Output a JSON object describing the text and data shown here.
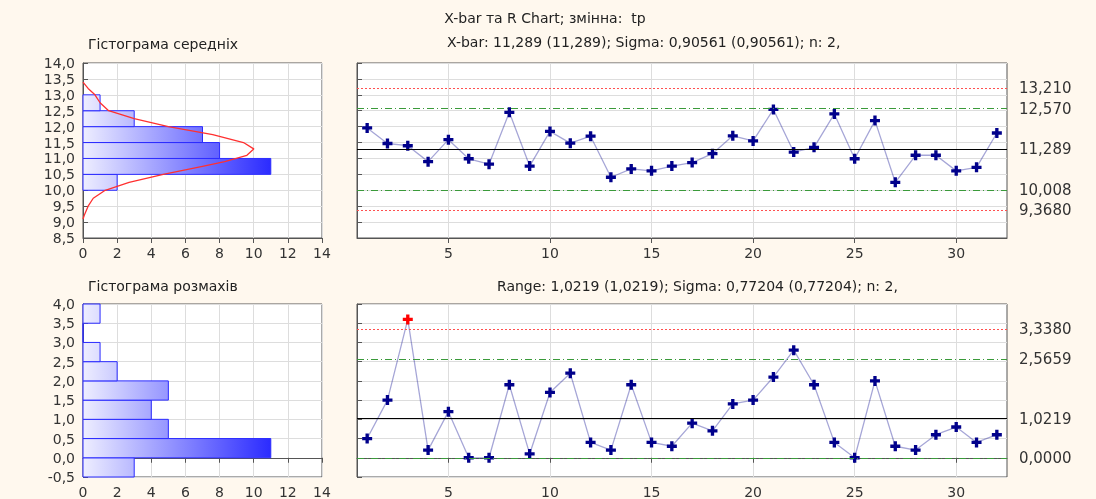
{
  "chart_data": [
    {
      "type": "histogram",
      "title": "Гістограма середніх",
      "orientation": "horizontal",
      "bins": [
        10,
        10.5,
        11,
        11.5,
        12,
        12.5,
        13
      ],
      "values": [
        2,
        11,
        8,
        7,
        3,
        1
      ],
      "color": "#2b2bff",
      "series": [
        {
          "type": "line",
          "color": "#ff3030",
          "x": [
            13.4,
            13.2,
            13.0,
            12.75,
            12.5,
            12.25,
            12.0,
            11.75,
            11.5,
            11.3,
            11.1,
            10.9,
            10.75,
            10.5,
            10.25,
            10.0,
            9.75,
            9.5,
            9.25,
            9.1
          ],
          "values": [
            0,
            0.3,
            0.7,
            1.0,
            1.5,
            3.0,
            5.0,
            7.6,
            9.4,
            10.0,
            9.6,
            8.3,
            7.0,
            4.7,
            2.7,
            1.3,
            0.6,
            0.3,
            0.1,
            0
          ]
        }
      ],
      "xlim": [
        0,
        14
      ],
      "xticks": [
        0,
        2,
        4,
        6,
        8,
        10,
        12,
        14
      ],
      "ylim": [
        8.5,
        14
      ],
      "yticks": [
        {
          "value": 8.5,
          "label": "8,5"
        },
        {
          "value": 9,
          "label": "9,0"
        },
        {
          "value": 9.5,
          "label": "9,5"
        },
        {
          "value": 10,
          "label": "10,0"
        },
        {
          "value": 10.5,
          "label": "10,5"
        },
        {
          "value": 11,
          "label": "11,0"
        },
        {
          "value": 11.5,
          "label": "11,5"
        },
        {
          "value": 12,
          "label": "12,0"
        },
        {
          "value": 12.5,
          "label": "12,5"
        },
        {
          "value": 13,
          "label": "13,0"
        },
        {
          "value": 13.5,
          "label": "13,5"
        },
        {
          "value": 14,
          "label": "14,0"
        }
      ],
      "grid": true
    },
    {
      "type": "line",
      "title": "X-bar та R Chart; змінна:  tp",
      "subtitle": "X-bar: 11,289 (11,289); Sigma: 0,90561 (0,90561); n: 2,",
      "color": "#00008b",
      "marker": "cross",
      "x": [
        1,
        2,
        3,
        4,
        5,
        6,
        7,
        8,
        9,
        10,
        11,
        12,
        13,
        14,
        15,
        16,
        17,
        18,
        19,
        20,
        21,
        22,
        23,
        24,
        25,
        26,
        27,
        28,
        29,
        30,
        31,
        32
      ],
      "values": [
        11.96,
        11.47,
        11.4,
        10.9,
        11.59,
        10.99,
        10.82,
        12.45,
        10.76,
        11.85,
        11.48,
        11.7,
        10.41,
        10.67,
        10.61,
        10.76,
        10.87,
        11.15,
        11.71,
        11.55,
        12.54,
        11.2,
        11.35,
        12.4,
        10.99,
        12.19,
        10.25,
        11.1,
        11.1,
        10.61,
        10.72,
        11.8
      ],
      "xlim": [
        0.5,
        32.5
      ],
      "xticks": [
        5,
        10,
        15,
        20,
        25,
        30
      ],
      "ylim": [
        8.5,
        14
      ],
      "yticks": [
        8.5,
        9,
        9.5,
        10,
        10.5,
        11,
        11.5,
        12,
        12.5,
        13,
        13.5,
        14
      ],
      "tick_labels": "x",
      "grid": true,
      "ref_lines": [
        {
          "axis": "y",
          "value": 13.21,
          "label": "13,210",
          "color": "#ff5050",
          "line_style": "dotted"
        },
        {
          "axis": "y",
          "value": 12.57,
          "label": "12,570",
          "color": "#3a9a3a",
          "line_style": "dashed"
        },
        {
          "axis": "y",
          "value": 11.289,
          "label": "11,289",
          "color": "#000000",
          "line_style": "solid"
        },
        {
          "axis": "y",
          "value": 10.008,
          "label": "10,008",
          "color": "#3a9a3a",
          "line_style": "dashed"
        },
        {
          "axis": "y",
          "value": 9.368,
          "label": "9,3680",
          "color": "#ff5050",
          "line_style": "dotted"
        }
      ]
    },
    {
      "type": "histogram",
      "title": "Гістограма розмахів",
      "orientation": "horizontal",
      "bins": [
        -0.5,
        0,
        0.5,
        1,
        1.5,
        2,
        2.5,
        3,
        3.5,
        4
      ],
      "values": [
        3,
        11,
        5,
        4,
        5,
        2,
        1,
        0,
        1
      ],
      "color": "#2b2bff",
      "xlim": [
        0,
        14
      ],
      "xticks": [
        0,
        2,
        4,
        6,
        8,
        10,
        12,
        14
      ],
      "ylim": [
        -0.5,
        4
      ],
      "yticks": [
        {
          "value": -0.5,
          "label": "-0,5"
        },
        {
          "value": 0,
          "label": "0,0"
        },
        {
          "value": 0.5,
          "label": "0,5"
        },
        {
          "value": 1,
          "label": "1,0"
        },
        {
          "value": 1.5,
          "label": "1,5"
        },
        {
          "value": 2,
          "label": "2,0"
        },
        {
          "value": 2.5,
          "label": "2,5"
        },
        {
          "value": 3,
          "label": "3,0"
        },
        {
          "value": 3.5,
          "label": "3,5"
        },
        {
          "value": 4,
          "label": "4,0"
        }
      ],
      "grid": true
    },
    {
      "type": "line",
      "title": "Range: 1,0219 (1,0219); Sigma: 0,77204 (0,77204); n: 2,",
      "color": "#00008b",
      "marker": "cross",
      "x": [
        1,
        2,
        3,
        4,
        5,
        6,
        7,
        8,
        9,
        10,
        11,
        12,
        13,
        14,
        15,
        16,
        17,
        18,
        19,
        20,
        21,
        22,
        23,
        24,
        25,
        26,
        27,
        28,
        29,
        30,
        31,
        32
      ],
      "values": [
        0.5,
        1.5,
        3.6,
        0.2,
        1.2,
        0,
        0,
        1.9,
        0.1,
        1.7,
        2.2,
        0.4,
        0.2,
        1.9,
        0.4,
        0.3,
        0.9,
        0.7,
        1.4,
        1.5,
        2.1,
        2.8,
        1.9,
        0.4,
        0,
        2.0,
        0.3,
        0.2,
        0.6,
        0.8,
        0.4,
        0.6
      ],
      "colors": [
        "#00008b",
        "#00008b",
        "#ff0000",
        "#00008b",
        "#00008b",
        "#00008b",
        "#00008b",
        "#00008b",
        "#00008b",
        "#00008b",
        "#00008b",
        "#00008b",
        "#00008b",
        "#00008b",
        "#00008b",
        "#00008b",
        "#00008b",
        "#00008b",
        "#00008b",
        "#00008b",
        "#00008b",
        "#00008b",
        "#00008b",
        "#00008b",
        "#00008b",
        "#00008b",
        "#00008b",
        "#00008b",
        "#00008b",
        "#00008b",
        "#00008b",
        "#00008b"
      ],
      "xlim": [
        0.5,
        32.5
      ],
      "xticks": [
        5,
        10,
        15,
        20,
        25,
        30
      ],
      "ylim": [
        -0.5,
        4
      ],
      "yticks": [
        -0.5,
        0,
        0.5,
        1,
        1.5,
        2,
        2.5,
        3,
        3.5,
        4
      ],
      "tick_labels": "x",
      "grid": true,
      "ref_lines": [
        {
          "axis": "y",
          "value": 3.338,
          "label": "3,3380",
          "color": "#ff5050",
          "line_style": "dotted"
        },
        {
          "axis": "y",
          "value": 2.5659,
          "label": "2,5659",
          "color": "#3a9a3a",
          "line_style": "dashed"
        },
        {
          "axis": "y",
          "value": 1.0219,
          "label": "1,0219",
          "color": "#000000",
          "line_style": "solid"
        },
        {
          "axis": "y",
          "value": 0,
          "label": "0,0000",
          "color": "#3a9a3a",
          "line_style": "dashed"
        }
      ]
    }
  ]
}
